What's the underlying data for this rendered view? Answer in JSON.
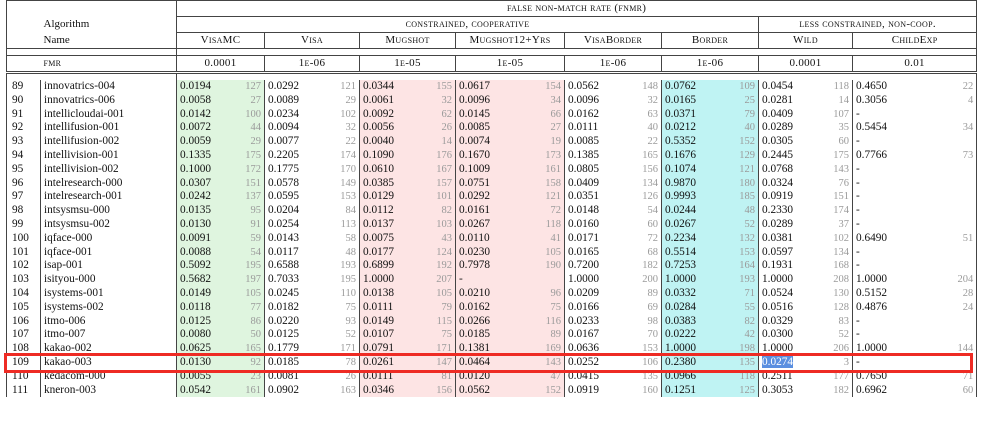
{
  "header": {
    "group_title": "false non-match rate (fnmr)",
    "group_constrained": "constrained, cooperative",
    "group_less": "less constrained, non-coop.",
    "algorithm_label": "Algorithm",
    "name_label": "Name",
    "fmr_label": "fmr",
    "columns": [
      "VisaMC",
      "Visa",
      "Mugshot",
      "Mugshot12+Yrs",
      "VisaBorder",
      "Border",
      "Wild",
      "ChildExp"
    ],
    "fmr_values": [
      "0.0001",
      "1e-06",
      "1e-05",
      "1e-05",
      "1e-06",
      "1e-06",
      "0.0001",
      "0.01"
    ]
  },
  "colors": {
    "highlight_border": "#ee2b24",
    "green_band": "#dff5df",
    "red_band": "#fde4e4",
    "cyan_band": "#bff3f3",
    "selection": "#5b8fe0"
  },
  "rows": [
    {
      "idx": "89",
      "name": "innovatrics-004",
      "v": [
        [
          "0.0194",
          "127"
        ],
        [
          "0.0292",
          "121"
        ],
        [
          "0.0344",
          "155"
        ],
        [
          "0.0617",
          "154"
        ],
        [
          "0.0562",
          "148"
        ],
        [
          "0.0762",
          "109"
        ],
        [
          "0.0454",
          "118"
        ],
        [
          "0.4650",
          "22"
        ]
      ]
    },
    {
      "idx": "90",
      "name": "innovatrics-006",
      "v": [
        [
          "0.0058",
          "27"
        ],
        [
          "0.0089",
          "29"
        ],
        [
          "0.0061",
          "32"
        ],
        [
          "0.0096",
          "34"
        ],
        [
          "0.0096",
          "32"
        ],
        [
          "0.0165",
          "25"
        ],
        [
          "0.0281",
          "14"
        ],
        [
          "0.3056",
          "4"
        ]
      ]
    },
    {
      "idx": "91",
      "name": "intellicloudai-001",
      "v": [
        [
          "0.0142",
          "100"
        ],
        [
          "0.0234",
          "102"
        ],
        [
          "0.0092",
          "62"
        ],
        [
          "0.0145",
          "66"
        ],
        [
          "0.0162",
          "63"
        ],
        [
          "0.0371",
          "79"
        ],
        [
          "0.0409",
          "107"
        ],
        [
          "-",
          ""
        ]
      ]
    },
    {
      "idx": "92",
      "name": "intellifusion-001",
      "v": [
        [
          "0.0072",
          "44"
        ],
        [
          "0.0094",
          "32"
        ],
        [
          "0.0056",
          "26"
        ],
        [
          "0.0085",
          "27"
        ],
        [
          "0.0111",
          "40"
        ],
        [
          "0.0212",
          "40"
        ],
        [
          "0.0289",
          "35"
        ],
        [
          "0.5454",
          "34"
        ]
      ]
    },
    {
      "idx": "93",
      "name": "intellifusion-002",
      "v": [
        [
          "0.0059",
          "29"
        ],
        [
          "0.0077",
          "22"
        ],
        [
          "0.0040",
          "14"
        ],
        [
          "0.0074",
          "19"
        ],
        [
          "0.0085",
          "22"
        ],
        [
          "0.5352",
          "152"
        ],
        [
          "0.0305",
          "60"
        ],
        [
          "-",
          ""
        ]
      ]
    },
    {
      "idx": "94",
      "name": "intellivision-001",
      "v": [
        [
          "0.1335",
          "175"
        ],
        [
          "0.2205",
          "174"
        ],
        [
          "0.1090",
          "176"
        ],
        [
          "0.1670",
          "173"
        ],
        [
          "0.1385",
          "165"
        ],
        [
          "0.1676",
          "129"
        ],
        [
          "0.2445",
          "175"
        ],
        [
          "0.7766",
          "73"
        ]
      ]
    },
    {
      "idx": "95",
      "name": "intellivision-002",
      "v": [
        [
          "0.1000",
          "172"
        ],
        [
          "0.1775",
          "170"
        ],
        [
          "0.0610",
          "167"
        ],
        [
          "0.1009",
          "161"
        ],
        [
          "0.0805",
          "156"
        ],
        [
          "0.1074",
          "121"
        ],
        [
          "0.0768",
          "143"
        ],
        [
          "-",
          ""
        ]
      ]
    },
    {
      "idx": "96",
      "name": "intelresearch-000",
      "v": [
        [
          "0.0307",
          "151"
        ],
        [
          "0.0578",
          "149"
        ],
        [
          "0.0385",
          "157"
        ],
        [
          "0.0751",
          "158"
        ],
        [
          "0.0409",
          "134"
        ],
        [
          "0.9870",
          "180"
        ],
        [
          "0.0324",
          "76"
        ],
        [
          "-",
          ""
        ]
      ]
    },
    {
      "idx": "97",
      "name": "intelresearch-001",
      "v": [
        [
          "0.0242",
          "137"
        ],
        [
          "0.0595",
          "153"
        ],
        [
          "0.0129",
          "101"
        ],
        [
          "0.0292",
          "121"
        ],
        [
          "0.0351",
          "126"
        ],
        [
          "0.9993",
          "185"
        ],
        [
          "0.0919",
          "151"
        ],
        [
          "-",
          ""
        ]
      ]
    },
    {
      "idx": "98",
      "name": "intsysmsu-000",
      "v": [
        [
          "0.0135",
          "95"
        ],
        [
          "0.0204",
          "84"
        ],
        [
          "0.0112",
          "82"
        ],
        [
          "0.0161",
          "72"
        ],
        [
          "0.0148",
          "54"
        ],
        [
          "0.0244",
          "48"
        ],
        [
          "0.2330",
          "174"
        ],
        [
          "-",
          ""
        ]
      ]
    },
    {
      "idx": "99",
      "name": "intsysmsu-002",
      "v": [
        [
          "0.0130",
          "91"
        ],
        [
          "0.0254",
          "113"
        ],
        [
          "0.0137",
          "103"
        ],
        [
          "0.0267",
          "118"
        ],
        [
          "0.0160",
          "60"
        ],
        [
          "0.0267",
          "52"
        ],
        [
          "0.0289",
          "37"
        ],
        [
          "-",
          ""
        ]
      ]
    },
    {
      "idx": "100",
      "name": "iqface-000",
      "v": [
        [
          "0.0091",
          "59"
        ],
        [
          "0.0143",
          "58"
        ],
        [
          "0.0075",
          "43"
        ],
        [
          "0.0110",
          "41"
        ],
        [
          "0.0171",
          "72"
        ],
        [
          "0.2234",
          "132"
        ],
        [
          "0.0381",
          "102"
        ],
        [
          "0.6490",
          "51"
        ]
      ]
    },
    {
      "idx": "101",
      "name": "iqface-001",
      "v": [
        [
          "0.0088",
          "54"
        ],
        [
          "0.0117",
          "48"
        ],
        [
          "0.0177",
          "124"
        ],
        [
          "0.0230",
          "105"
        ],
        [
          "0.0165",
          "68"
        ],
        [
          "0.5514",
          "153"
        ],
        [
          "0.0597",
          "134"
        ],
        [
          "-",
          ""
        ]
      ]
    },
    {
      "idx": "102",
      "name": "isap-001",
      "v": [
        [
          "0.5092",
          "195"
        ],
        [
          "0.6588",
          "193"
        ],
        [
          "0.6899",
          "192"
        ],
        [
          "0.7978",
          "190"
        ],
        [
          "0.7200",
          "182"
        ],
        [
          "0.7253",
          "164"
        ],
        [
          "0.1931",
          "168"
        ],
        [
          "-",
          ""
        ]
      ]
    },
    {
      "idx": "103",
      "name": "isityou-000",
      "v": [
        [
          "0.5682",
          "197"
        ],
        [
          "0.7033",
          "195"
        ],
        [
          "1.0000",
          "207"
        ],
        [
          "-",
          ""
        ],
        [
          "1.0000",
          "200"
        ],
        [
          "1.0000",
          "193"
        ],
        [
          "1.0000",
          "208"
        ],
        [
          "1.0000",
          "204"
        ]
      ]
    },
    {
      "idx": "104",
      "name": "isystems-001",
      "v": [
        [
          "0.0149",
          "105"
        ],
        [
          "0.0245",
          "110"
        ],
        [
          "0.0138",
          "105"
        ],
        [
          "0.0210",
          "96"
        ],
        [
          "0.0209",
          "89"
        ],
        [
          "0.0332",
          "71"
        ],
        [
          "0.0524",
          "130"
        ],
        [
          "0.5152",
          "28"
        ]
      ]
    },
    {
      "idx": "105",
      "name": "isystems-002",
      "v": [
        [
          "0.0118",
          "77"
        ],
        [
          "0.0182",
          "75"
        ],
        [
          "0.0111",
          "79"
        ],
        [
          "0.0162",
          "75"
        ],
        [
          "0.0166",
          "69"
        ],
        [
          "0.0284",
          "55"
        ],
        [
          "0.0516",
          "128"
        ],
        [
          "0.4876",
          "24"
        ]
      ]
    },
    {
      "idx": "106",
      "name": "itmo-006",
      "v": [
        [
          "0.0125",
          "86"
        ],
        [
          "0.0220",
          "93"
        ],
        [
          "0.0149",
          "115"
        ],
        [
          "0.0266",
          "116"
        ],
        [
          "0.0233",
          "98"
        ],
        [
          "0.0383",
          "82"
        ],
        [
          "0.0329",
          "83"
        ],
        [
          "-",
          ""
        ]
      ]
    },
    {
      "idx": "107",
      "name": "itmo-007",
      "v": [
        [
          "0.0080",
          "50"
        ],
        [
          "0.0125",
          "52"
        ],
        [
          "0.0107",
          "75"
        ],
        [
          "0.0185",
          "89"
        ],
        [
          "0.0167",
          "70"
        ],
        [
          "0.0222",
          "42"
        ],
        [
          "0.0300",
          "52"
        ],
        [
          "-",
          ""
        ]
      ]
    },
    {
      "idx": "108",
      "name": "kakao-002",
      "v": [
        [
          "0.0625",
          "165"
        ],
        [
          "0.1779",
          "171"
        ],
        [
          "0.0791",
          "171"
        ],
        [
          "0.1381",
          "169"
        ],
        [
          "0.0636",
          "153"
        ],
        [
          "1.0000",
          "198"
        ],
        [
          "1.0000",
          "206"
        ],
        [
          "1.0000",
          "144"
        ]
      ]
    },
    {
      "idx": "109",
      "name": "kakao-003",
      "v": [
        [
          "0.0130",
          "92"
        ],
        [
          "0.0185",
          "78"
        ],
        [
          "0.0261",
          "147"
        ],
        [
          "0.0464",
          "143"
        ],
        [
          "0.0252",
          "106"
        ],
        [
          "0.2380",
          "135"
        ],
        [
          "0.0274",
          "3"
        ],
        [
          "-",
          ""
        ]
      ]
    },
    {
      "idx": "110",
      "name": "kedacom-000",
      "v": [
        [
          "0.0055",
          "23"
        ],
        [
          "0.0081",
          "26"
        ],
        [
          "0.0111",
          "81"
        ],
        [
          "0.0120",
          "47"
        ],
        [
          "0.0415",
          "135"
        ],
        [
          "0.0966",
          "118"
        ],
        [
          "0.2511",
          "177"
        ],
        [
          "0.7650",
          "71"
        ]
      ]
    },
    {
      "idx": "111",
      "name": "kneron-003",
      "v": [
        [
          "0.0542",
          "161"
        ],
        [
          "0.0902",
          "163"
        ],
        [
          "0.0346",
          "156"
        ],
        [
          "0.0562",
          "152"
        ],
        [
          "0.0919",
          "160"
        ],
        [
          "0.1251",
          "125"
        ],
        [
          "0.3053",
          "182"
        ],
        [
          "0.6962",
          "60"
        ]
      ]
    }
  ]
}
